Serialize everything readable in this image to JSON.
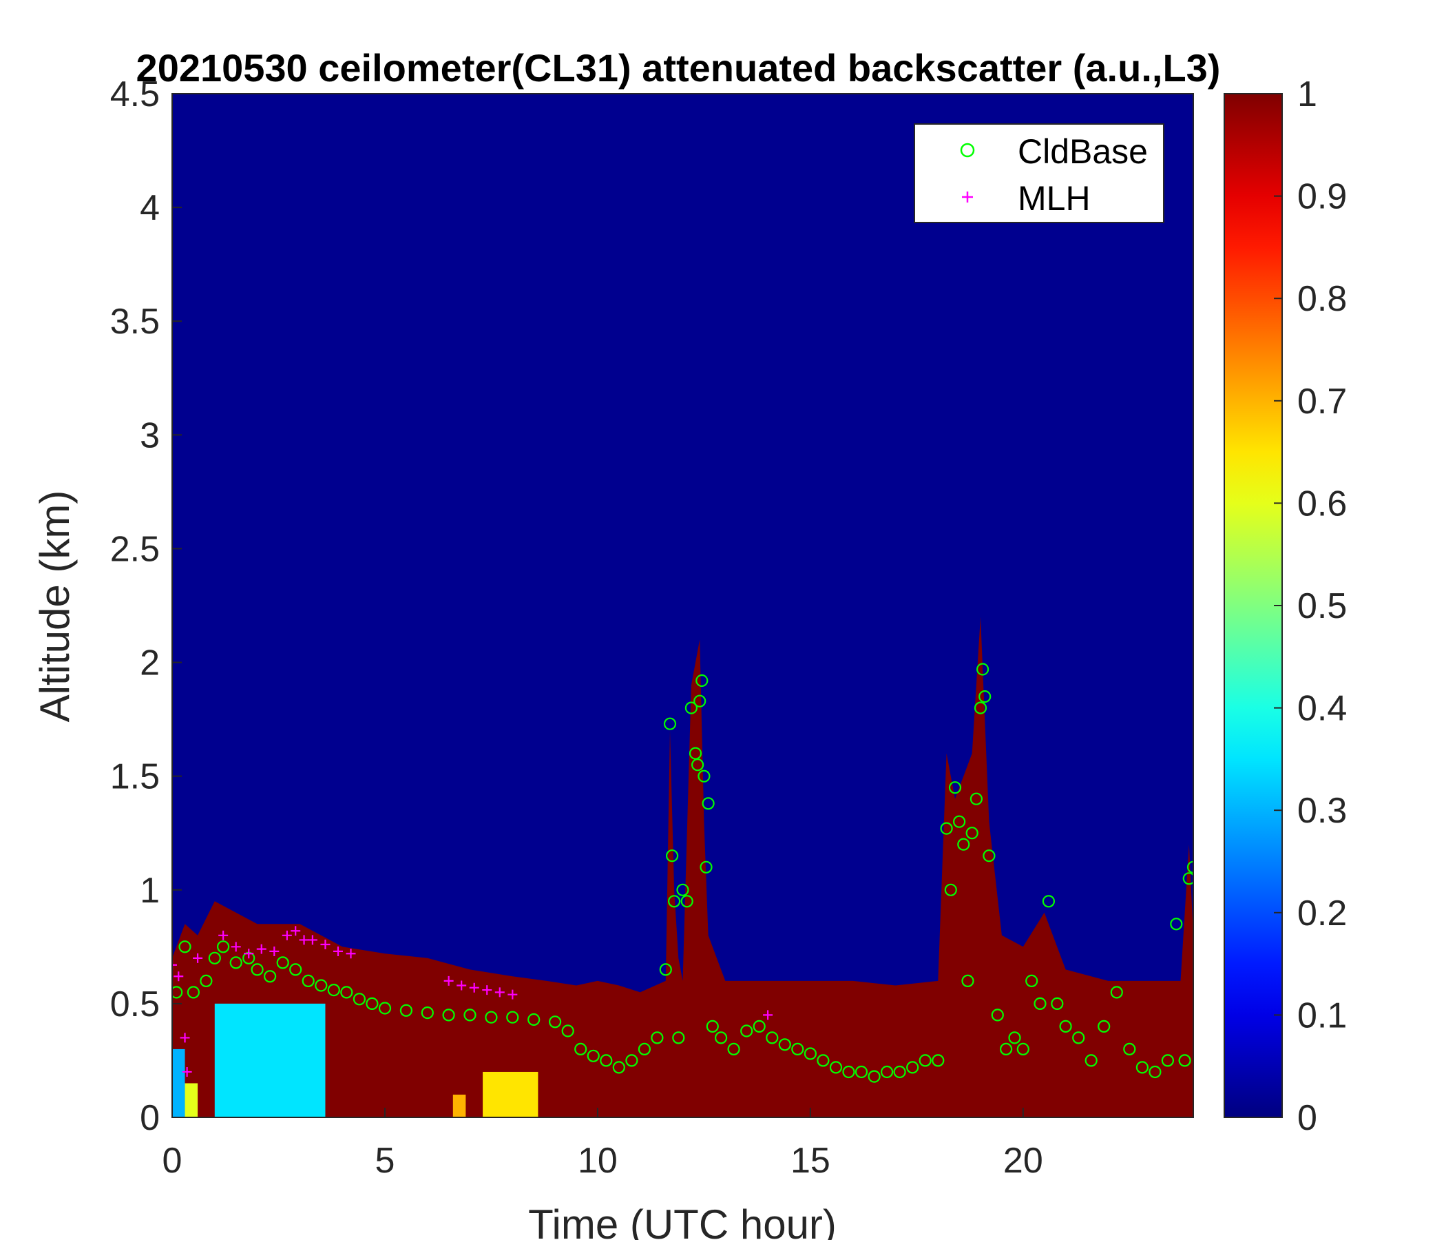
{
  "chart_data": {
    "type": "heatmap",
    "title": "20210530 ceilometer(CL31) attenuated backscatter (a.u.,L3)",
    "xlabel": "Time (UTC hour)",
    "ylabel": "Altitude (km)",
    "xlim": [
      0,
      24
    ],
    "ylim": [
      0,
      4.5
    ],
    "x_ticks": [
      "0",
      "5",
      "10",
      "15",
      "20"
    ],
    "y_ticks": [
      "0",
      "0.5",
      "1",
      "1.5",
      "2",
      "2.5",
      "3",
      "3.5",
      "4",
      "4.5"
    ],
    "colorbar": {
      "colormap": "jet",
      "range": [
        0,
        1
      ],
      "ticks": [
        "0",
        "0.1",
        "0.2",
        "0.3",
        "0.4",
        "0.5",
        "0.6",
        "0.7",
        "0.8",
        "0.9",
        "1"
      ]
    },
    "background_color": "#00008f",
    "colors": {
      "cldbase": "#00ff00",
      "mlh": "#ff00ff",
      "saturated": "#800000"
    },
    "legend": {
      "position": "top-right",
      "entries": [
        "CldBase",
        "MLH"
      ]
    },
    "aerosol_layer_top": {
      "x": [
        0,
        0.3,
        0.6,
        1,
        1.5,
        2,
        2.5,
        3,
        3.5,
        4,
        5,
        6,
        7,
        8,
        8.8,
        9.5,
        10,
        10.5,
        11,
        11.6,
        11.7,
        11.8,
        11.9,
        12,
        12.2,
        12.4,
        12.5,
        12.6,
        12.8,
        13,
        14,
        15,
        16,
        17,
        18,
        18.2,
        18.4,
        18.8,
        19,
        19.2,
        19.5,
        20,
        20.5,
        21,
        22,
        23,
        23.7,
        23.9,
        24
      ],
      "y": [
        0.7,
        0.85,
        0.8,
        0.95,
        0.9,
        0.85,
        0.85,
        0.85,
        0.8,
        0.75,
        0.72,
        0.7,
        0.65,
        0.62,
        0.6,
        0.58,
        0.6,
        0.58,
        0.55,
        0.6,
        1.7,
        1.0,
        0.7,
        0.6,
        1.9,
        2.1,
        1.3,
        0.8,
        0.7,
        0.6,
        0.6,
        0.6,
        0.6,
        0.58,
        0.6,
        1.6,
        1.4,
        1.6,
        2.2,
        1.3,
        0.8,
        0.75,
        0.9,
        0.65,
        0.6,
        0.6,
        0.6,
        1.2,
        0.8
      ]
    },
    "low_backscatter_regions": [
      {
        "x": [
          0,
          0.3
        ],
        "y": [
          0,
          0.3
        ],
        "value": 0.3
      },
      {
        "x": [
          0.3,
          0.6
        ],
        "y": [
          0,
          0.15
        ],
        "value": 0.6
      },
      {
        "x": [
          1.0,
          3.6
        ],
        "y": [
          0,
          0.5
        ],
        "value": 0.35
      },
      {
        "x": [
          7.3,
          8.6
        ],
        "y": [
          0,
          0.2
        ],
        "value": 0.65
      },
      {
        "x": [
          6.6,
          6.9
        ],
        "y": [
          0,
          0.1
        ],
        "value": 0.7
      }
    ],
    "series": [
      {
        "name": "CldBase",
        "marker": "circle",
        "x": [
          0.1,
          0.3,
          0.5,
          0.8,
          1.0,
          1.2,
          1.5,
          1.8,
          2.0,
          2.3,
          2.6,
          2.9,
          3.2,
          3.5,
          3.8,
          4.1,
          4.4,
          4.7,
          5.0,
          5.5,
          6.0,
          6.5,
          7.0,
          7.5,
          8.0,
          8.5,
          9.0,
          9.3,
          9.6,
          9.9,
          10.2,
          10.5,
          10.8,
          11.1,
          11.4,
          11.6,
          11.7,
          11.75,
          11.8,
          11.9,
          12.0,
          12.1,
          12.2,
          12.3,
          12.35,
          12.4,
          12.45,
          12.5,
          12.55,
          12.6,
          12.7,
          12.9,
          13.2,
          13.5,
          13.8,
          14.1,
          14.4,
          14.7,
          15.0,
          15.3,
          15.6,
          15.9,
          16.2,
          16.5,
          16.8,
          17.1,
          17.4,
          17.7,
          18.0,
          18.2,
          18.3,
          18.4,
          18.5,
          18.6,
          18.7,
          18.8,
          18.9,
          19.0,
          19.05,
          19.1,
          19.2,
          19.4,
          19.6,
          19.8,
          20.0,
          20.2,
          20.4,
          20.6,
          20.8,
          21.0,
          21.3,
          21.6,
          21.9,
          22.2,
          22.5,
          22.8,
          23.1,
          23.4,
          23.6,
          23.8,
          23.9,
          24.0
        ],
        "y": [
          0.55,
          0.75,
          0.55,
          0.6,
          0.7,
          0.75,
          0.68,
          0.7,
          0.65,
          0.62,
          0.68,
          0.65,
          0.6,
          0.58,
          0.56,
          0.55,
          0.52,
          0.5,
          0.48,
          0.47,
          0.46,
          0.45,
          0.45,
          0.44,
          0.44,
          0.43,
          0.42,
          0.38,
          0.3,
          0.27,
          0.25,
          0.22,
          0.25,
          0.3,
          0.35,
          0.65,
          1.73,
          1.15,
          0.95,
          0.35,
          1.0,
          0.95,
          1.8,
          1.6,
          1.55,
          1.83,
          1.92,
          1.5,
          1.1,
          1.38,
          0.4,
          0.35,
          0.3,
          0.38,
          0.4,
          0.35,
          0.32,
          0.3,
          0.28,
          0.25,
          0.22,
          0.2,
          0.2,
          0.18,
          0.2,
          0.2,
          0.22,
          0.25,
          0.25,
          1.27,
          1.0,
          1.45,
          1.3,
          1.2,
          0.6,
          1.25,
          1.4,
          1.8,
          1.97,
          1.85,
          1.15,
          0.45,
          0.3,
          0.35,
          0.3,
          0.6,
          0.5,
          0.95,
          0.5,
          0.4,
          0.35,
          0.25,
          0.4,
          0.55,
          0.3,
          0.22,
          0.2,
          0.25,
          0.85,
          0.25,
          1.05,
          1.1
        ]
      },
      {
        "name": "MLH",
        "marker": "plus",
        "x": [
          0.0,
          0.15,
          0.3,
          0.35,
          0.6,
          1.2,
          1.5,
          1.8,
          2.1,
          2.4,
          2.7,
          2.9,
          3.1,
          3.3,
          3.6,
          3.9,
          4.2,
          6.5,
          6.8,
          7.1,
          7.4,
          7.7,
          8.0,
          14.0
        ],
        "y": [
          0.67,
          0.62,
          0.35,
          0.2,
          0.7,
          0.8,
          0.75,
          0.72,
          0.74,
          0.73,
          0.8,
          0.82,
          0.78,
          0.78,
          0.76,
          0.73,
          0.72,
          0.6,
          0.58,
          0.57,
          0.56,
          0.55,
          0.54,
          0.45
        ]
      }
    ]
  }
}
